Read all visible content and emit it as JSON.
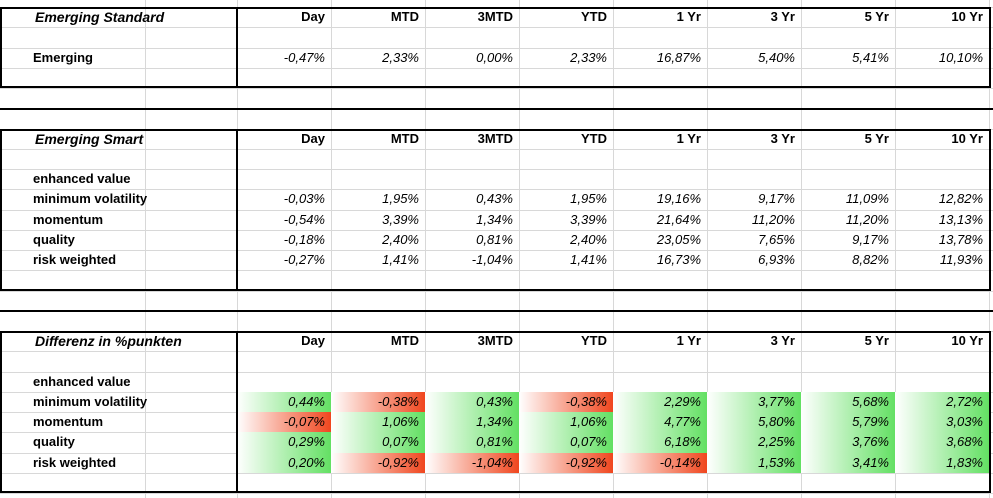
{
  "tables": [
    {
      "title": "Emerging Standard",
      "columns": [
        "Day",
        "MTD",
        "3MTD",
        "YTD",
        "1 Yr",
        "3 Yr",
        "5 Yr",
        "10 Yr"
      ],
      "rows": [
        {
          "label": "Emerging",
          "cells": [
            "-0,47%",
            "2,33%",
            "0,00%",
            "2,33%",
            "16,87%",
            "5,40%",
            "5,41%",
            "10,10%"
          ]
        }
      ]
    },
    {
      "title": "Emerging Smart",
      "columns": [
        "Day",
        "MTD",
        "3MTD",
        "YTD",
        "1 Yr",
        "3 Yr",
        "5 Yr",
        "10 Yr"
      ],
      "rows": [
        {
          "label": "enhanced value",
          "cells": []
        },
        {
          "label": "minimum volatility",
          "cells": [
            "-0,03%",
            "1,95%",
            "0,43%",
            "1,95%",
            "19,16%",
            "9,17%",
            "11,09%",
            "12,82%"
          ]
        },
        {
          "label": "momentum",
          "cells": [
            "-0,54%",
            "3,39%",
            "1,34%",
            "3,39%",
            "21,64%",
            "11,20%",
            "11,20%",
            "13,13%"
          ]
        },
        {
          "label": "quality",
          "cells": [
            "-0,18%",
            "2,40%",
            "0,81%",
            "2,40%",
            "23,05%",
            "7,65%",
            "9,17%",
            "13,78%"
          ]
        },
        {
          "label": "risk weighted",
          "cells": [
            "-0,27%",
            "1,41%",
            "-1,04%",
            "1,41%",
            "16,73%",
            "6,93%",
            "8,82%",
            "11,93%"
          ]
        }
      ]
    },
    {
      "title": "Differenz in %punkten",
      "columns": [
        "Day",
        "MTD",
        "3MTD",
        "YTD",
        "1 Yr",
        "3 Yr",
        "5 Yr",
        "10 Yr"
      ],
      "data_bars": true,
      "rows": [
        {
          "label": "enhanced value",
          "cells": []
        },
        {
          "label": "minimum volatility",
          "cells": [
            "0,44%",
            "-0,38%",
            "0,43%",
            "-0,38%",
            "2,29%",
            "3,77%",
            "5,68%",
            "2,72%"
          ]
        },
        {
          "label": "momentum",
          "cells": [
            "-0,07%",
            "1,06%",
            "1,34%",
            "1,06%",
            "4,77%",
            "5,80%",
            "5,79%",
            "3,03%"
          ]
        },
        {
          "label": "quality",
          "cells": [
            "0,29%",
            "0,07%",
            "0,81%",
            "0,07%",
            "6,18%",
            "2,25%",
            "3,76%",
            "3,68%"
          ]
        },
        {
          "label": "risk weighted",
          "cells": [
            "0,20%",
            "-0,92%",
            "-1,04%",
            "-0,92%",
            "-0,14%",
            "1,53%",
            "3,41%",
            "1,83%"
          ]
        }
      ]
    }
  ]
}
